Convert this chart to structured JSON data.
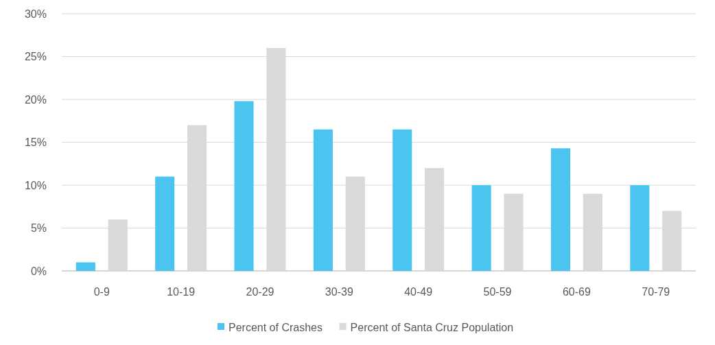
{
  "chart_data": {
    "type": "bar",
    "categories": [
      "0-9",
      "10-19",
      "20-29",
      "30-39",
      "40-49",
      "50-59",
      "60-69",
      "70-79"
    ],
    "series": [
      {
        "name": "Percent of Crashes",
        "color": "#4cc4f0",
        "values": [
          1,
          11,
          19.8,
          16.5,
          16.5,
          10,
          14.3,
          10
        ]
      },
      {
        "name": "Percent of Santa Cruz Population",
        "color": "#d9d9d9",
        "values": [
          6,
          17,
          26,
          11,
          12,
          9,
          9,
          7
        ]
      }
    ],
    "ylim": [
      0,
      30
    ],
    "yticks": [
      {
        "value": 0,
        "label": "0%"
      },
      {
        "value": 5,
        "label": "5%"
      },
      {
        "value": 10,
        "label": "10%"
      },
      {
        "value": 15,
        "label": "15%"
      },
      {
        "value": 20,
        "label": "20%"
      },
      {
        "value": 25,
        "label": "25%"
      },
      {
        "value": 30,
        "label": "30%"
      }
    ],
    "grid": "y",
    "legend": "bottom"
  }
}
